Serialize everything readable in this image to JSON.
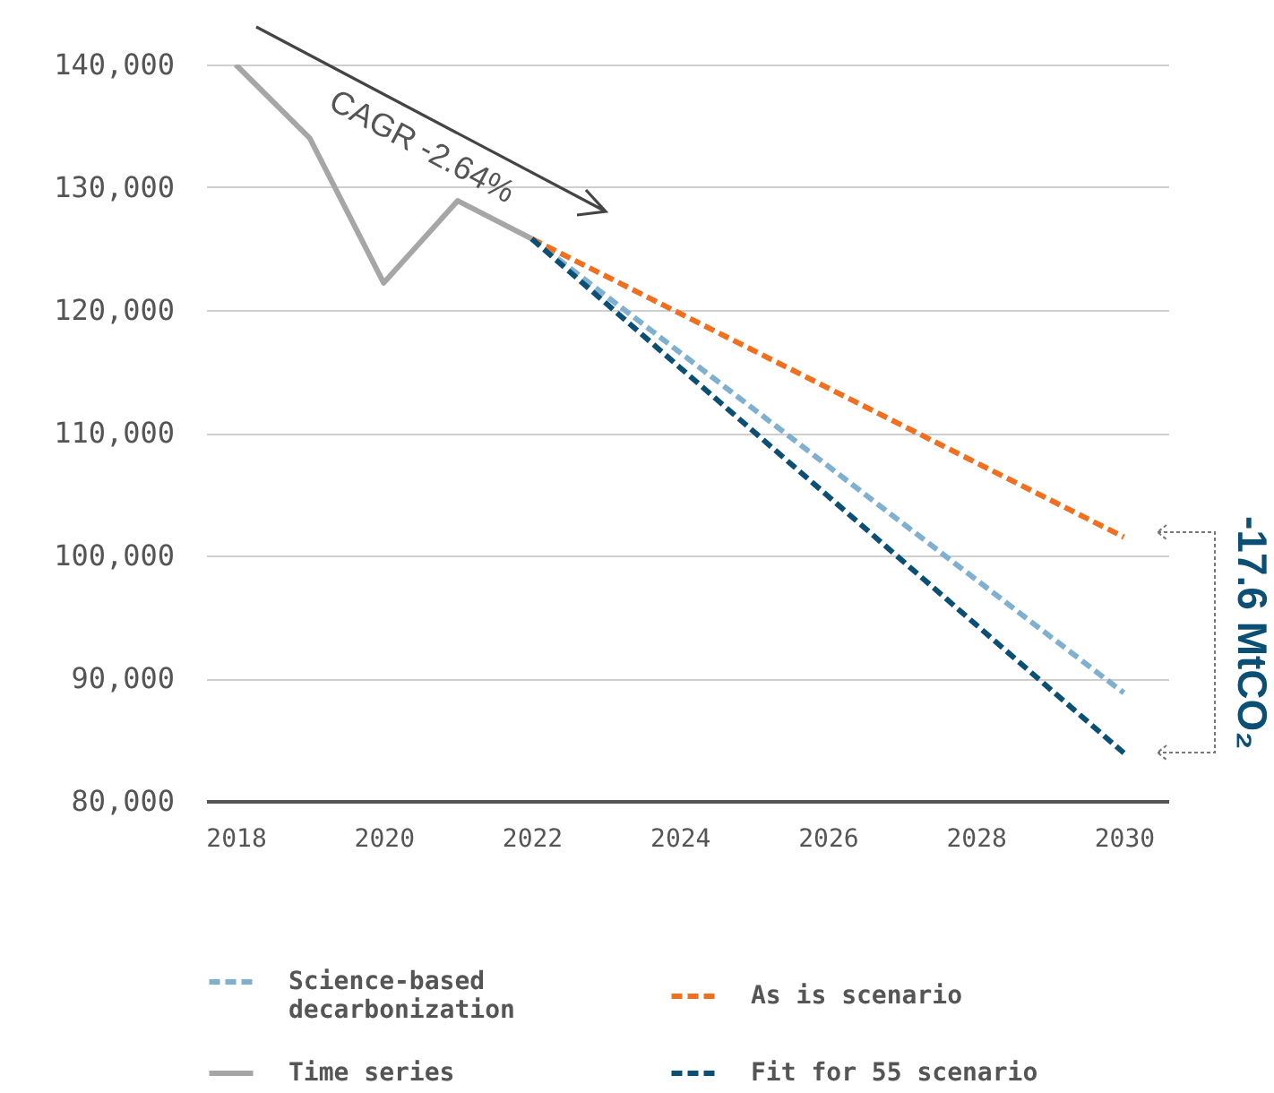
{
  "chart_data": {
    "type": "line",
    "xlim": [
      2017.6,
      2030.6
    ],
    "xticks": [
      2018,
      2020,
      2022,
      2024,
      2026,
      2028,
      2030
    ],
    "ylim": [
      80000,
      140000
    ],
    "yticks": [
      {
        "value": 80000,
        "label": "80,000"
      },
      {
        "value": 90000,
        "label": "90,000"
      },
      {
        "value": 100000,
        "label": "100,000"
      },
      {
        "value": 110000,
        "label": "110,000"
      },
      {
        "value": 120000,
        "label": "120,000"
      },
      {
        "value": 130000,
        "label": "130,000"
      },
      {
        "value": 140000,
        "label": "140,000"
      }
    ],
    "grid": "y",
    "legend": "bottom",
    "marker": "none",
    "series": [
      {
        "name": "Science-based decarbonization",
        "color": "#7fb0d0",
        "line_style": "dashed",
        "x": [
          2022,
          2030
        ],
        "values": [
          125800,
          88800
        ]
      },
      {
        "name": "As is scenario",
        "color": "#f07020",
        "line_style": "dashed",
        "x": [
          2022,
          2030
        ],
        "values": [
          125800,
          101500
        ]
      },
      {
        "name": "Time series",
        "color": "#a6a6a6",
        "line_style": "solid",
        "x": [
          2018,
          2019,
          2020,
          2021,
          2022
        ],
        "values": [
          140000,
          134000,
          122200,
          128900,
          125800
        ]
      },
      {
        "name": "Fit for 55 scenario",
        "color": "#0b4f75",
        "line_style": "dashed",
        "x": [
          2022,
          2030
        ],
        "values": [
          125800,
          83900
        ]
      }
    ],
    "annotations": [
      "CAGR -2.64%",
      "-17.6 MtCO₂"
    ]
  }
}
